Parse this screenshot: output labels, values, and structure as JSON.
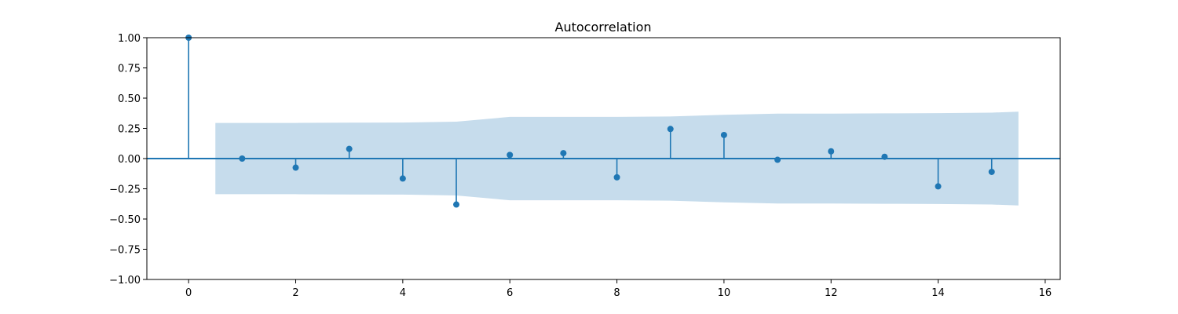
{
  "chart_data": {
    "type": "stem",
    "title": "Autocorrelation",
    "xlabel": "",
    "ylabel": "",
    "xlim": [
      -0.78,
      16.28
    ],
    "ylim": [
      -1.0,
      1.0
    ],
    "x_ticks": [
      0,
      2,
      4,
      6,
      8,
      10,
      12,
      14,
      16
    ],
    "y_ticks": [
      1.0,
      0.75,
      0.5,
      0.25,
      0.0,
      -0.25,
      -0.5,
      -0.75,
      -1.0
    ],
    "x_tick_labels": [
      "0",
      "2",
      "4",
      "6",
      "8",
      "10",
      "12",
      "14",
      "16"
    ],
    "y_tick_labels": [
      "1.00",
      "0.75",
      "0.50",
      "0.25",
      "0.00",
      "−0.25",
      "−0.50",
      "−0.75",
      "−1.00"
    ],
    "grid": false,
    "colors": {
      "stem": "#1f77b4",
      "confidence_band": "#c6dcec"
    },
    "lags": [
      0,
      1,
      2,
      3,
      4,
      5,
      6,
      7,
      8,
      9,
      10,
      11,
      12,
      13,
      14,
      15
    ],
    "values": [
      1.0,
      0.0,
      -0.075,
      0.08,
      -0.165,
      -0.38,
      0.03,
      0.045,
      -0.155,
      0.245,
      0.195,
      -0.01,
      0.06,
      0.015,
      -0.23,
      -0.11
    ],
    "confidence_band": {
      "x": [
        0.5,
        1,
        2,
        3,
        4,
        5,
        6,
        7,
        8,
        9,
        10,
        11,
        12,
        13,
        14,
        15,
        15.5
      ],
      "upper": [
        0.295,
        0.295,
        0.295,
        0.297,
        0.298,
        0.305,
        0.345,
        0.345,
        0.345,
        0.348,
        0.362,
        0.372,
        0.372,
        0.374,
        0.376,
        0.38,
        0.388
      ],
      "lower": [
        -0.295,
        -0.295,
        -0.295,
        -0.297,
        -0.298,
        -0.305,
        -0.345,
        -0.345,
        -0.345,
        -0.348,
        -0.362,
        -0.372,
        -0.372,
        -0.374,
        -0.376,
        -0.38,
        -0.388
      ]
    }
  }
}
